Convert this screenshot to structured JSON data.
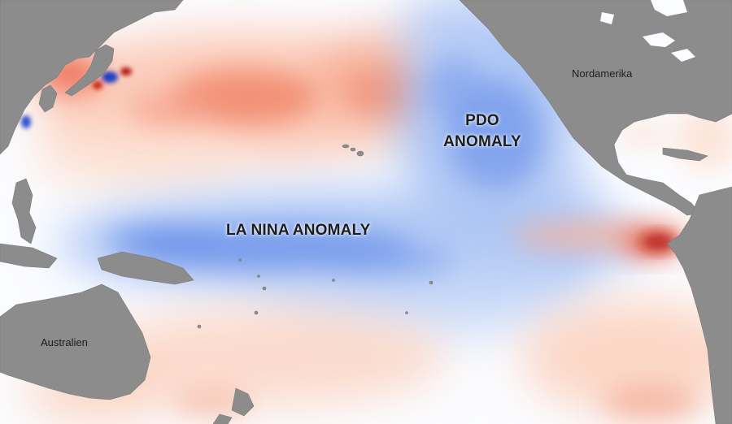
{
  "map": {
    "labels": {
      "north_america": "Nordamerika",
      "australia": "Australien",
      "pdo_line1": "PDO",
      "pdo_line2": "ANOMALY",
      "la_nina": "LA NINA ANOMALY"
    },
    "colors": {
      "land": "#8c8c8c",
      "ocean_neutral": "#fbfcff",
      "warm_anomaly": "#e8553a",
      "strong_warm_anomaly": "#b3140f",
      "cool_anomaly": "#4f7fe6",
      "strong_cool_anomaly": "#1f3fc4"
    }
  }
}
